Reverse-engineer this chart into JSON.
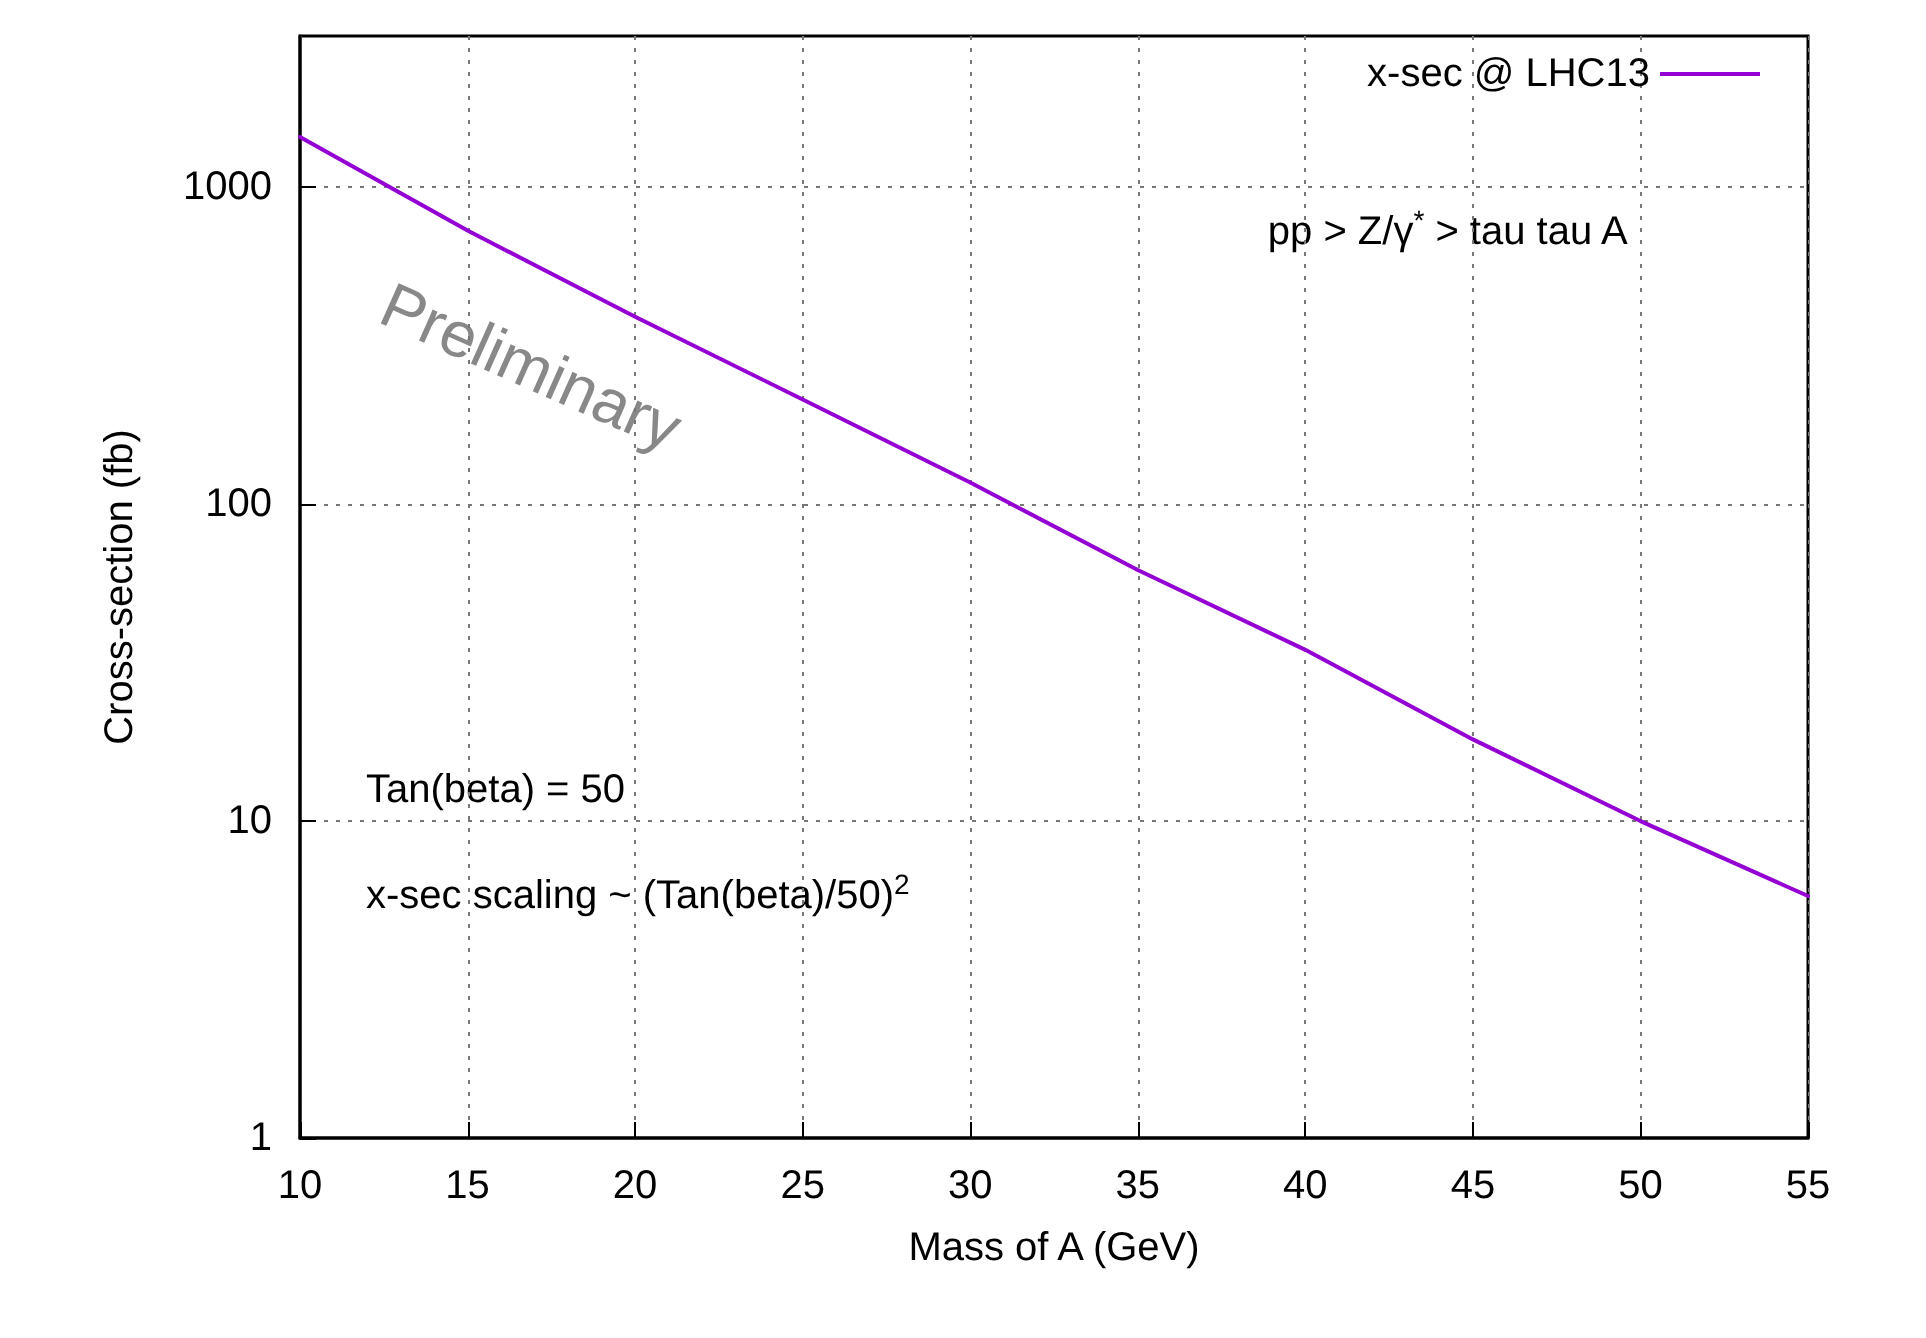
{
  "chart_data": {
    "type": "line",
    "xlabel": "Mass of A (GeV)",
    "ylabel": "Cross-section (fb)",
    "x": [
      10,
      15,
      20,
      25,
      30,
      35,
      40,
      45,
      50,
      55
    ],
    "series": [
      {
        "name": "x-sec @ LHC13",
        "color": "#9400d3",
        "values": [
          1440,
          730,
          390,
          214,
          117,
          62,
          34.7,
          18.1,
          10,
          5.8
        ]
      }
    ],
    "xlim": [
      10,
      55
    ],
    "xticks": [
      10,
      15,
      20,
      25,
      30,
      35,
      40,
      45,
      50,
      55
    ],
    "ylim": [
      1,
      3000
    ],
    "yticks": [
      1,
      10,
      100,
      1000
    ],
    "log": "y",
    "grid": true,
    "legend": "top right",
    "marker": "none",
    "line_style": "solid",
    "annotations": [
      "pp > Z/γ$^{*}$ > tau tau A",
      "Tan(beta) = 50",
      "x-sec scaling ~ (Tan(beta)/50)$^{2}$",
      "Preliminary"
    ]
  }
}
